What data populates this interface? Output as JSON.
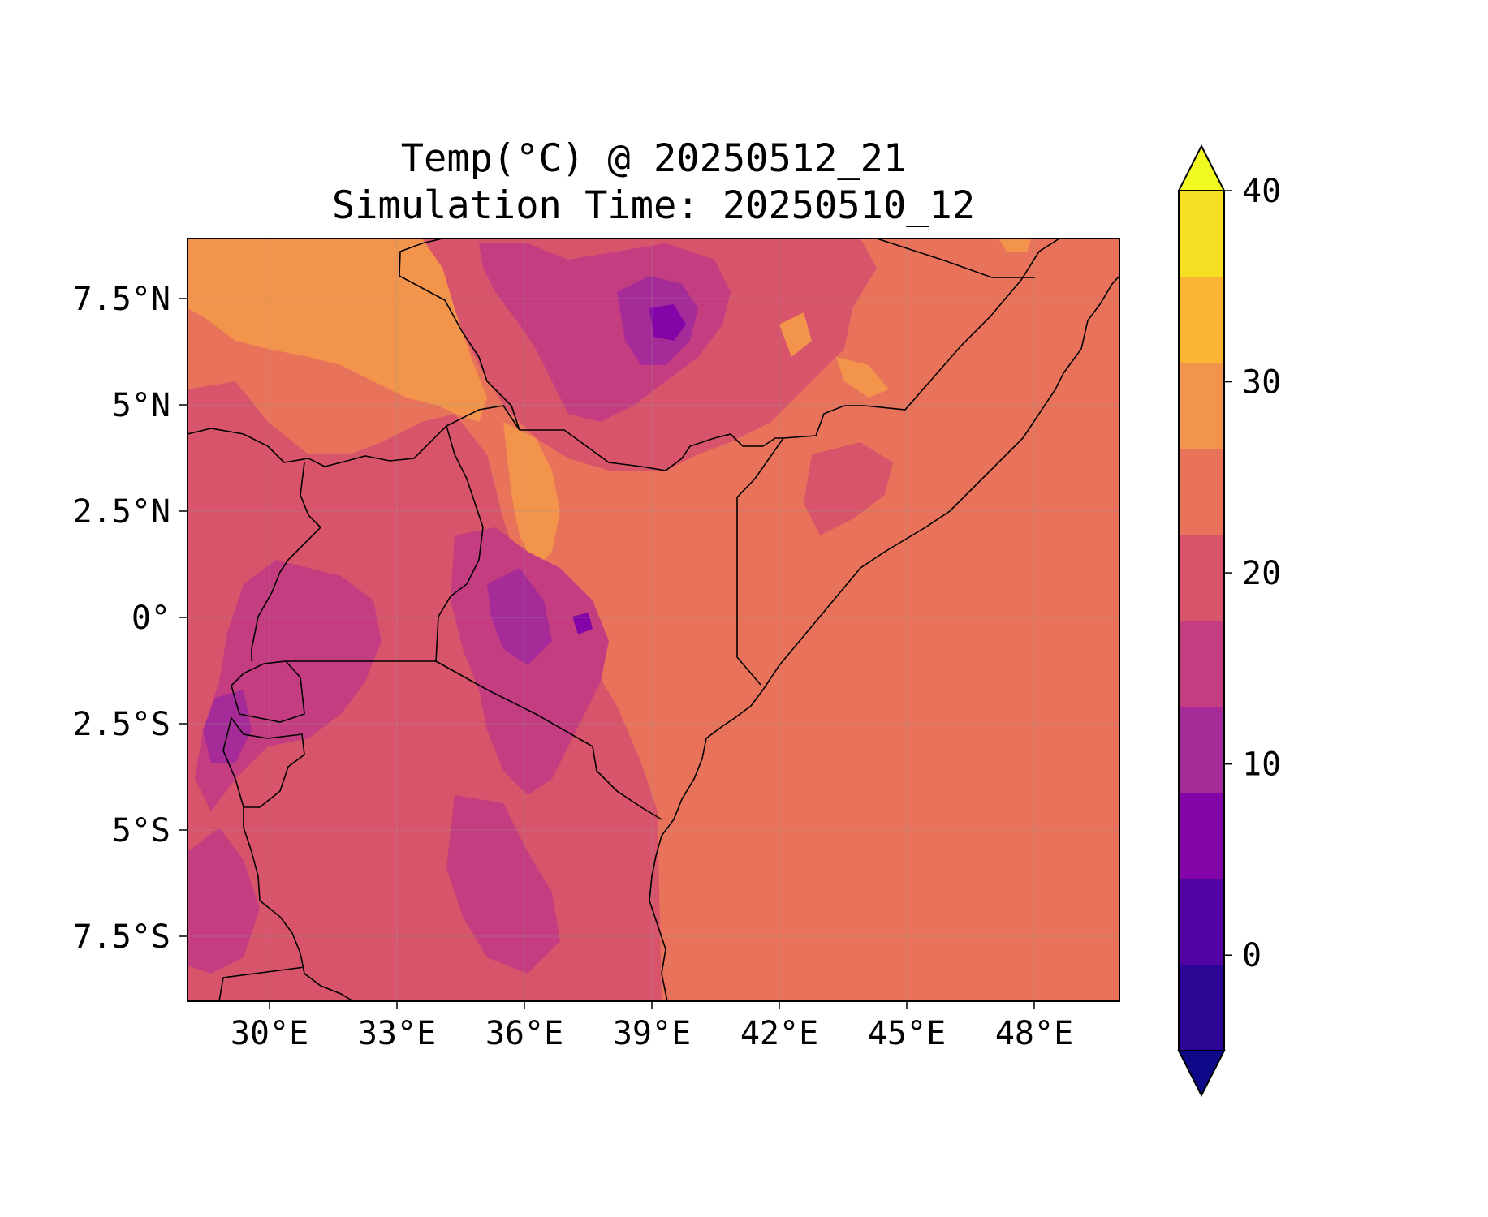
{
  "title": {
    "line1": "Temp(°C) @ 20250512_21",
    "line2": "Simulation Time: 20250510_12"
  },
  "map": {
    "x_ticks": [
      "30°E",
      "33°E",
      "36°E",
      "39°E",
      "42°E",
      "45°E",
      "48°E"
    ],
    "y_ticks": [
      "7.5°N",
      "5°N",
      "2.5°N",
      "0°",
      "2.5°S",
      "5°S",
      "7.5°S"
    ],
    "grid": true
  },
  "colorbar": {
    "ticks": [
      "0",
      "10",
      "20",
      "30",
      "40"
    ],
    "levels": [
      -5,
      0,
      5,
      10,
      15,
      20,
      25,
      30,
      35,
      40
    ],
    "colors": [
      "#0d0887",
      "#2d0594",
      "#5302a3",
      "#8305a7",
      "#a52c98",
      "#c33d80",
      "#d7546b",
      "#e8735a",
      "#f2944b",
      "#fbb533",
      "#f7e024",
      "#f0f921"
    ],
    "extend": "both"
  },
  "regions": {
    "dominant": "#e8735a",
    "warm": "#f2944b",
    "mild": "#d7546b",
    "cool": "#c33d80",
    "cold": "#a52c98",
    "colder": "#8305a7"
  }
}
